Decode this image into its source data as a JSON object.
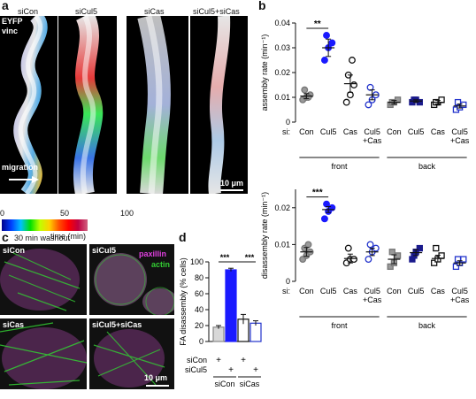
{
  "panel_a": {
    "letter": "a",
    "conditions": [
      "siCon",
      "siCul5",
      "siCas",
      "siCul5+siCas"
    ],
    "stain_line1": "EYFP",
    "stain_line2": "vinc",
    "migration_label": "migration",
    "scalebar_label": "10 μm",
    "colorbar": {
      "ticks": [
        "0",
        "50",
        "100"
      ],
      "label": "time (min)"
    }
  },
  "panel_b": {
    "letter": "b"
  },
  "panel_c": {
    "letter": "c",
    "title": "30 min washout",
    "tiles": [
      "siCon",
      "siCul5",
      "siCas",
      "siCul5+siCas"
    ],
    "stain_paxillin": "paxillin",
    "stain_actin": "actin",
    "scalebar_label": "10 μm"
  },
  "panel_d": {
    "letter": "d"
  },
  "colors": {
    "gray": "#808080",
    "blue": "#1a1aff",
    "navy": "#1a1a8c",
    "red_blue": "#0000cc",
    "light_blue": "#3355ff",
    "magenta": "#e040e0",
    "green": "#33cc33"
  },
  "chart_data": [
    {
      "type": "scatter",
      "id": "assembly",
      "ylabel": "assembly rate (min⁻¹)",
      "ylim": [
        0,
        0.04
      ],
      "yticks": [
        "0",
        "0.01",
        "0.02",
        "0.03",
        "0.04"
      ],
      "si_label": "si:",
      "categories": [
        "Con",
        "Cul5",
        "Cas",
        "Cul5\n+Cas",
        "Con",
        "Cul5",
        "Cas",
        "Cul5\n+Cas"
      ],
      "groups": [
        "front",
        "back"
      ],
      "significance": "**",
      "series": [
        {
          "values": [
            0.009,
            0.01,
            0.011,
            0.013,
            0.01
          ],
          "mean": 0.0105,
          "err": 0.001
        },
        {
          "values": [
            0.025,
            0.03,
            0.032,
            0.035
          ],
          "mean": 0.03,
          "err": 0.0035
        },
        {
          "values": [
            0.008,
            0.011,
            0.015,
            0.019,
            0.025
          ],
          "mean": 0.0155,
          "err": 0.0035
        },
        {
          "values": [
            0.007,
            0.009,
            0.011,
            0.014
          ],
          "mean": 0.011,
          "err": 0.002
        },
        {
          "values": [
            0.007,
            0.008,
            0.009,
            0.008
          ],
          "mean": 0.008,
          "err": 0.0007
        },
        {
          "values": [
            0.008,
            0.009,
            0.008,
            0.009
          ],
          "mean": 0.0085,
          "err": 0.0005
        },
        {
          "values": [
            0.007,
            0.008,
            0.009,
            0.008
          ],
          "mean": 0.008,
          "err": 0.0007
        },
        {
          "values": [
            0.005,
            0.006,
            0.007,
            0.008
          ],
          "mean": 0.0065,
          "err": 0.0008
        }
      ]
    },
    {
      "type": "scatter",
      "id": "disassembly",
      "ylabel": "disassembly rate (min⁻¹)",
      "ylim": [
        0,
        0.025
      ],
      "yticks": [
        "0",
        "0.01",
        "0.02"
      ],
      "si_label": "si:",
      "categories": [
        "Con",
        "Cul5",
        "Cas",
        "Cul5\n+Cas",
        "Con",
        "Cul5",
        "Cas",
        "Cul5\n+Cas"
      ],
      "groups": [
        "front",
        "back"
      ],
      "significance": "***",
      "series": [
        {
          "values": [
            0.006,
            0.007,
            0.008,
            0.009,
            0.01
          ],
          "mean": 0.008,
          "err": 0.0012
        },
        {
          "values": [
            0.017,
            0.019,
            0.02,
            0.021
          ],
          "mean": 0.0195,
          "err": 0.0008
        },
        {
          "values": [
            0.005,
            0.006,
            0.006,
            0.009
          ],
          "mean": 0.0062,
          "err": 0.0012
        },
        {
          "values": [
            0.006,
            0.008,
            0.009,
            0.01
          ],
          "mean": 0.008,
          "err": 0.001
        },
        {
          "values": [
            0.004,
            0.005,
            0.007,
            0.008
          ],
          "mean": 0.006,
          "err": 0.0012
        },
        {
          "values": [
            0.006,
            0.008,
            0.009,
            0.007
          ],
          "mean": 0.0078,
          "err": 0.0008
        },
        {
          "values": [
            0.005,
            0.006,
            0.007,
            0.009
          ],
          "mean": 0.0062,
          "err": 0.0009
        },
        {
          "values": [
            0.004,
            0.005,
            0.006,
            0.006
          ],
          "mean": 0.005,
          "err": 0.0006
        }
      ]
    },
    {
      "type": "bar",
      "id": "fa_disassembly",
      "ylabel": "FA disassembly (% cells)",
      "ylim": [
        0,
        100
      ],
      "yticks": [
        "0",
        "20",
        "40",
        "60",
        "80",
        "100"
      ],
      "categories": [
        "siCon",
        "siCul5",
        "siCon",
        "siCul5"
      ],
      "values": [
        18,
        90,
        28,
        23
      ],
      "errors": [
        2,
        2,
        6,
        3
      ],
      "rows": [
        {
          "label": "siCon",
          "marks": [
            "+",
            "",
            "+",
            ""
          ]
        },
        {
          "label": "siCul5",
          "marks": [
            "",
            "+",
            "",
            "+"
          ]
        }
      ],
      "groups": [
        "siCon",
        "siCas"
      ],
      "significance": [
        "***",
        "***"
      ]
    }
  ]
}
